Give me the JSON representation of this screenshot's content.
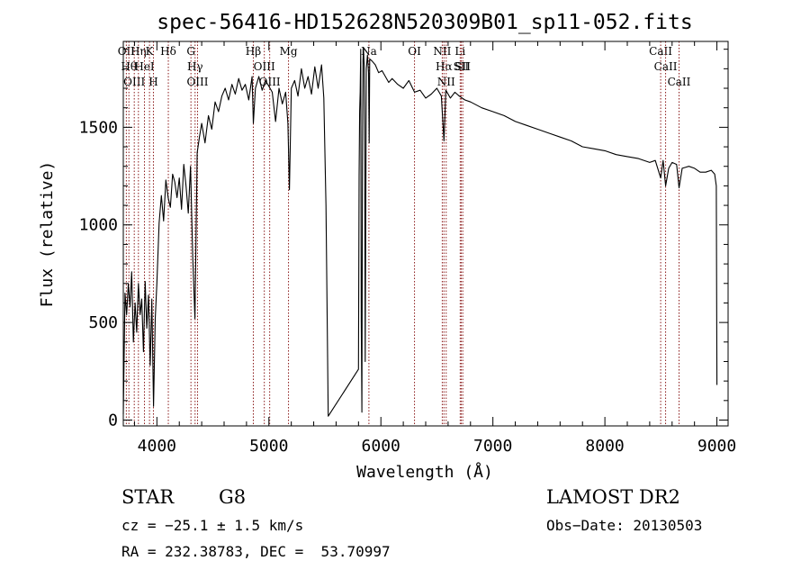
{
  "chart_data": {
    "type": "line",
    "title": "spec-56416-HD152628N520309B01_sp11-052.fits",
    "xlabel": "Wavelength (Å)",
    "ylabel": "Flux (relative)",
    "xlim": [
      3700,
      9100
    ],
    "ylim": [
      -30,
      1940
    ],
    "x_ticks": [
      4000,
      5000,
      6000,
      7000,
      8000,
      9000
    ],
    "y_ticks": [
      0,
      500,
      1000,
      1500
    ],
    "grid": false,
    "series": [
      {
        "x": [
          3700,
          3715,
          3730,
          3745,
          3760,
          3775,
          3790,
          3805,
          3820,
          3835,
          3850,
          3865,
          3880,
          3895,
          3910,
          3925,
          3940,
          3955,
          3970,
          3985,
          4000,
          4020,
          4040,
          4060,
          4080,
          4100,
          4120,
          4140,
          4160,
          4180,
          4200,
          4220,
          4240,
          4260,
          4280,
          4300,
          4320,
          4340,
          4360,
          4380,
          4400,
          4430,
          4460,
          4490,
          4520,
          4550,
          4580,
          4610,
          4640,
          4670,
          4700,
          4730,
          4760,
          4790,
          4820,
          4850,
          4861,
          4880,
          4910,
          4940,
          4970,
          5000,
          5030,
          5060,
          5090,
          5120,
          5150,
          5170,
          5183,
          5200,
          5230,
          5260,
          5290,
          5320,
          5350,
          5380,
          5410,
          5440,
          5470,
          5490,
          5510,
          5530,
          5800,
          5805,
          5810,
          5815,
          5820,
          5825,
          5830,
          5835,
          5840,
          5845,
          5850,
          5855,
          5860,
          5870,
          5880,
          5890,
          5895,
          5900,
          5920,
          5950,
          5980,
          6010,
          6040,
          6070,
          6100,
          6150,
          6200,
          6250,
          6300,
          6350,
          6400,
          6450,
          6500,
          6540,
          6563,
          6580,
          6620,
          6660,
          6700,
          6750,
          6800,
          6900,
          7000,
          7100,
          7200,
          7300,
          7400,
          7500,
          7600,
          7700,
          7800,
          7900,
          8000,
          8100,
          8200,
          8300,
          8400,
          8450,
          8498,
          8520,
          8542,
          8570,
          8600,
          8640,
          8662,
          8690,
          8750,
          8800,
          8850,
          8900,
          8950,
          8980,
          8995,
          9000
        ],
        "y": [
          30,
          650,
          540,
          700,
          580,
          760,
          400,
          600,
          450,
          700,
          540,
          620,
          350,
          710,
          470,
          640,
          280,
          620,
          70,
          520,
          700,
          1010,
          1150,
          1020,
          1230,
          1140,
          1090,
          1260,
          1220,
          1140,
          1240,
          1080,
          1310,
          1200,
          1060,
          1300,
          830,
          520,
          1370,
          1450,
          1520,
          1420,
          1560,
          1490,
          1630,
          1580,
          1660,
          1700,
          1640,
          1720,
          1670,
          1750,
          1690,
          1720,
          1640,
          1760,
          1520,
          1700,
          1760,
          1690,
          1740,
          1710,
          1680,
          1530,
          1700,
          1620,
          1680,
          1520,
          1180,
          1700,
          1740,
          1660,
          1800,
          1700,
          1760,
          1670,
          1810,
          1700,
          1820,
          1650,
          1100,
          20,
          260,
          1250,
          1580,
          1680,
          1900,
          500,
          40,
          1300,
          1840,
          1900,
          1820,
          1500,
          300,
          1800,
          1870,
          1780,
          1420,
          1850,
          1840,
          1820,
          1780,
          1790,
          1760,
          1730,
          1750,
          1720,
          1700,
          1740,
          1680,
          1690,
          1650,
          1670,
          1700,
          1660,
          1430,
          1690,
          1650,
          1680,
          1660,
          1640,
          1630,
          1600,
          1580,
          1560,
          1530,
          1510,
          1490,
          1470,
          1450,
          1430,
          1400,
          1390,
          1380,
          1360,
          1350,
          1340,
          1320,
          1330,
          1240,
          1330,
          1200,
          1290,
          1320,
          1310,
          1190,
          1290,
          1300,
          1290,
          1270,
          1270,
          1280,
          1260,
          1200,
          180
        ]
      }
    ],
    "line_markers": [
      {
        "x": 3727,
        "label": "OII"
      },
      {
        "x": 3750,
        "label": "Hθ"
      },
      {
        "x": 3798,
        "label": "OIII"
      },
      {
        "x": 3835,
        "label": "Hη"
      },
      {
        "x": 3889,
        "label": "HeI"
      },
      {
        "x": 3934,
        "label": "K"
      },
      {
        "x": 3969,
        "label": "H"
      },
      {
        "x": 4102,
        "label": "Hδ"
      },
      {
        "x": 4304,
        "label": "G"
      },
      {
        "x": 4341,
        "label": "Hγ"
      },
      {
        "x": 4363,
        "label": "OIII"
      },
      {
        "x": 4861,
        "label": "Hβ"
      },
      {
        "x": 4959,
        "label": "OIII"
      },
      {
        "x": 5007,
        "label": "OIII"
      },
      {
        "x": 5175,
        "label": "Mg"
      },
      {
        "x": 5893,
        "label": "Na"
      },
      {
        "x": 6300,
        "label": "OI"
      },
      {
        "x": 6548,
        "label": "NII"
      },
      {
        "x": 6563,
        "label": "Hα"
      },
      {
        "x": 6583,
        "label": "NII"
      },
      {
        "x": 6708,
        "label": "Li"
      },
      {
        "x": 6717,
        "label": "SII"
      },
      {
        "x": 6731,
        "label": "SII"
      },
      {
        "x": 8498,
        "label": "CaII"
      },
      {
        "x": 8542,
        "label": "CaII"
      },
      {
        "x": 8662,
        "label": "CaII"
      }
    ]
  },
  "footer": {
    "class_label": "STAR",
    "subclass_label": "G8",
    "velocity_text": "cz = −25.1 ± 1.5 km/s",
    "coords_text": "RA = 232.38783, DEC =  53.70997",
    "survey_label": "LAMOST DR2",
    "obs_date_text": "Obs−Date: 20130503"
  }
}
